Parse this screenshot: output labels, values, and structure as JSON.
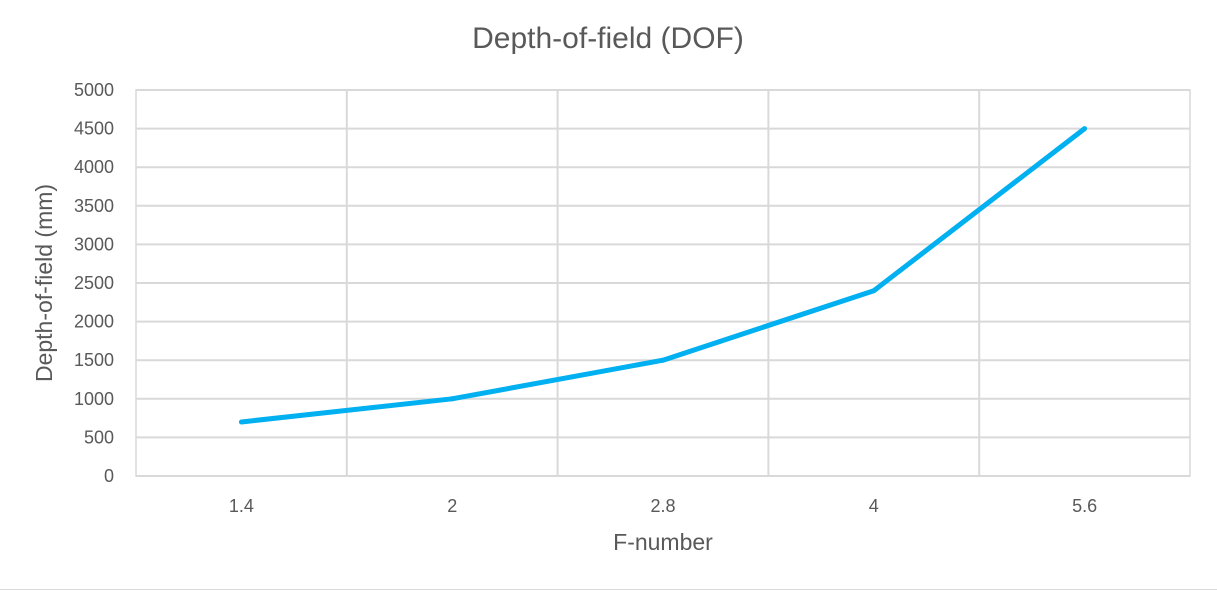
{
  "chart_data": {
    "type": "line",
    "title": "Depth-of-field (DOF)",
    "xlabel": "F-number",
    "ylabel": "Depth-of-field (mm)",
    "categories": [
      "1.4",
      "2",
      "2.8",
      "4",
      "5.6"
    ],
    "series": [
      {
        "values": [
          700,
          1000,
          1500,
          2400,
          4500
        ],
        "color": "#00b0f0"
      }
    ],
    "ylim": [
      0,
      5000
    ],
    "yticks": [
      0,
      500,
      1000,
      1500,
      2000,
      2500,
      3000,
      3500,
      4000,
      4500,
      5000
    ],
    "grid": true,
    "legend": "none"
  }
}
